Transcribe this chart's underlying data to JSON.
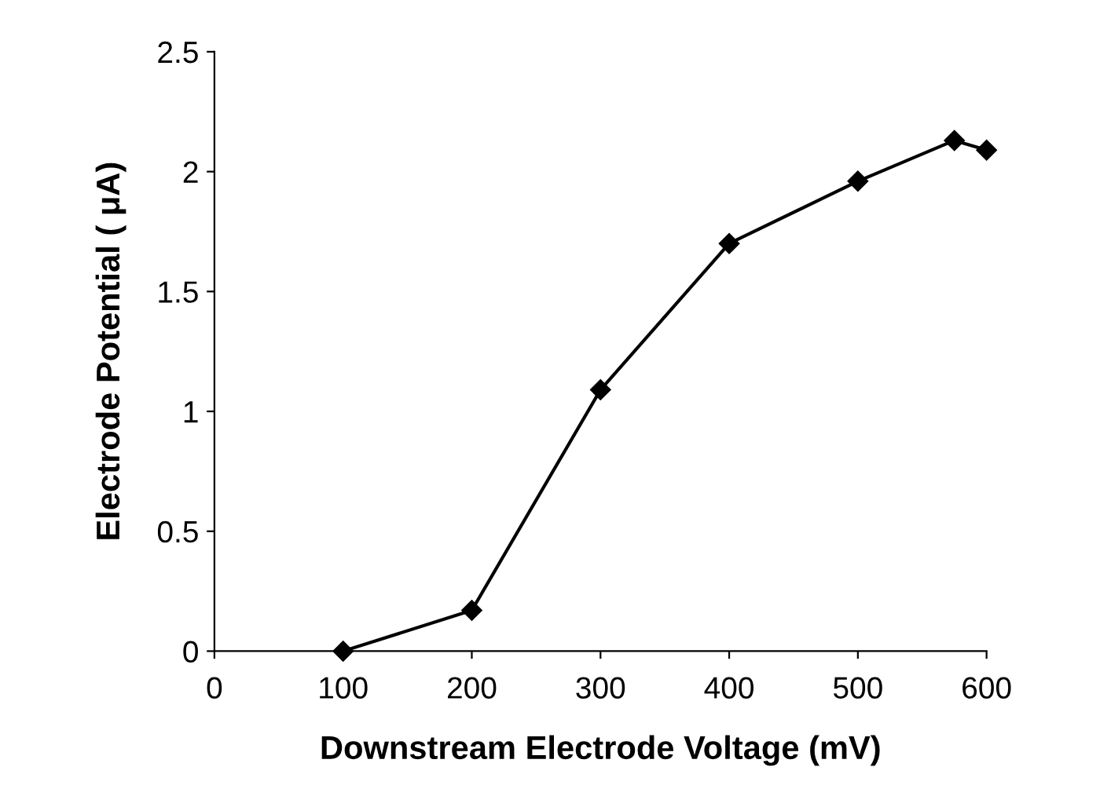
{
  "chart_data": {
    "type": "line",
    "xlabel": "Downstream Electrode Voltage (mV)",
    "ylabel": "Electrode Potential ( μA)",
    "x": [
      100,
      200,
      300,
      400,
      500,
      575,
      600
    ],
    "series": [
      {
        "color": "#000000",
        "values": [
          0,
          0.17,
          1.09,
          1.7,
          1.96,
          2.13,
          2.09
        ]
      }
    ],
    "xlim": [
      0,
      600
    ],
    "xticks": [
      0,
      100,
      200,
      300,
      400,
      500,
      600
    ],
    "ylim": [
      0,
      2.5
    ],
    "yticks": [
      0,
      0.5,
      1,
      1.5,
      2,
      2.5
    ],
    "marker": "diamond",
    "line_style": "solid",
    "grid": false,
    "legend": false
  }
}
